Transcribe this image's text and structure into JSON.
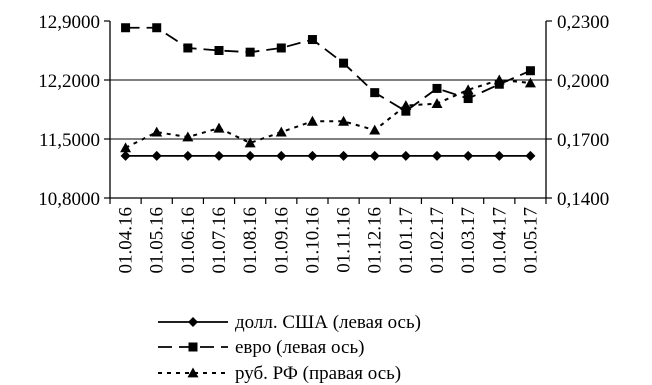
{
  "chart_data": {
    "type": "line",
    "categories": [
      "01.04.16",
      "01.05.16",
      "01.06.16",
      "01.07.16",
      "01.08.16",
      "01.09.16",
      "01.10.16",
      "01.11.16",
      "01.12.16",
      "01.01.17",
      "01.02.17",
      "01.03.17",
      "01.04.17",
      "01.05.17"
    ],
    "y_left": {
      "ylim": [
        10.8,
        12.9
      ],
      "ticks": [
        "10,8000",
        "11,5000",
        "12,2000",
        "12,9000"
      ],
      "tick_values": [
        10.8,
        11.5,
        12.2,
        12.9
      ]
    },
    "y_right": {
      "ylim": [
        0.14,
        0.23
      ],
      "ticks": [
        "0,1400",
        "0,1700",
        "0,2000",
        "0,2300"
      ],
      "tick_values": [
        0.14,
        0.17,
        0.2,
        0.23
      ]
    },
    "gridlines_left": [
      11.5,
      12.2
    ],
    "legend_position": "bottom",
    "series": [
      {
        "name": "долл. США (левая ось)",
        "axis": "left",
        "style": "solid",
        "marker": "diamond",
        "color": "#000000",
        "values": [
          11.3,
          11.3,
          11.3,
          11.3,
          11.3,
          11.3,
          11.3,
          11.3,
          11.3,
          11.3,
          11.3,
          11.3,
          11.3,
          11.3
        ]
      },
      {
        "name": "евро (левая ось)",
        "axis": "left",
        "style": "longdash",
        "marker": "square",
        "color": "#000000",
        "values": [
          12.82,
          12.82,
          12.58,
          12.55,
          12.53,
          12.58,
          12.68,
          12.4,
          12.05,
          11.83,
          12.1,
          11.98,
          12.15,
          12.31
        ]
      },
      {
        "name": "руб. РФ (правая ось)",
        "axis": "right",
        "style": "dotted",
        "marker": "triangle",
        "color": "#000000",
        "values": [
          0.1655,
          0.1735,
          0.171,
          0.1755,
          0.168,
          0.1735,
          0.179,
          0.179,
          0.1745,
          0.187,
          0.188,
          0.195,
          0.2,
          0.1985
        ]
      }
    ]
  }
}
